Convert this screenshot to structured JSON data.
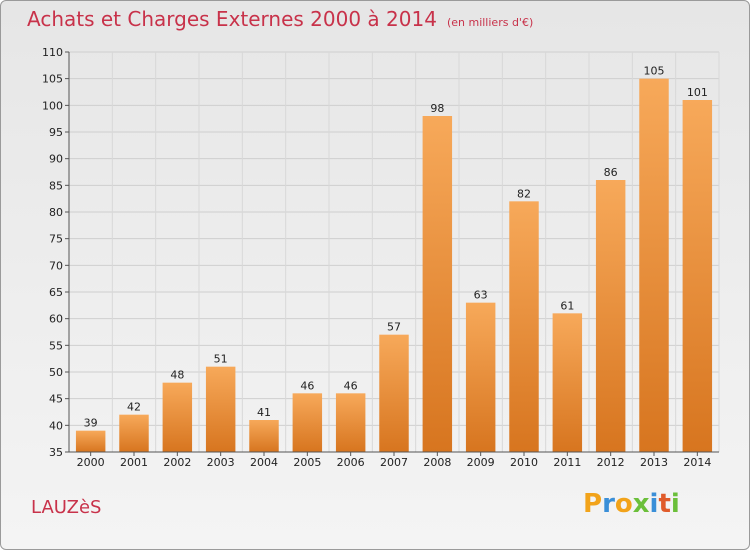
{
  "header": {
    "title": "Achats et Charges Externes 2000 à 2014",
    "subtitle": "(en milliers d'€)"
  },
  "location": "LAUZèS",
  "brand": {
    "letters": [
      "P",
      "r",
      "o",
      "x",
      "i",
      "t",
      "i"
    ],
    "colors": [
      "#f2a31a",
      "#3a8fd8",
      "#f2a31a",
      "#6bbf3a",
      "#3a8fd8",
      "#e05b2a",
      "#6bbf3a"
    ]
  },
  "colors": {
    "bar_light": "#f7a95a",
    "bar_dark": "#d7751f",
    "title": "#c8324a"
  },
  "chart_data": {
    "type": "bar",
    "categories": [
      "2000",
      "2001",
      "2002",
      "2003",
      "2004",
      "2005",
      "2006",
      "2007",
      "2008",
      "2009",
      "2010",
      "2011",
      "2012",
      "2013",
      "2014"
    ],
    "values": [
      39,
      42,
      48,
      51,
      41,
      46,
      46,
      57,
      98,
      63,
      82,
      61,
      86,
      105,
      101
    ],
    "title": "Achats et Charges Externes 2000 à 2014",
    "xlabel": "",
    "ylabel": "",
    "ylim": [
      35,
      110
    ],
    "yticks": [
      35,
      40,
      45,
      50,
      55,
      60,
      65,
      70,
      75,
      80,
      85,
      90,
      95,
      100,
      105,
      110
    ],
    "grid": true,
    "data_labels": true
  }
}
